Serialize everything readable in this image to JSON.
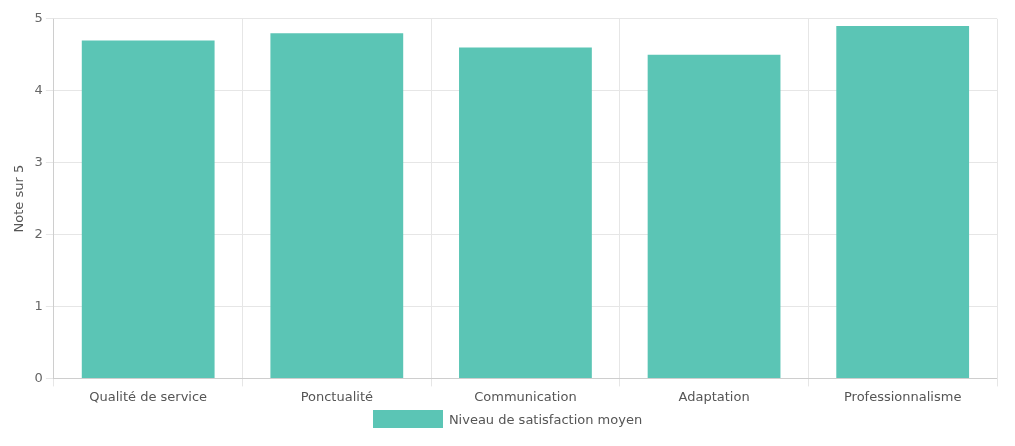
{
  "chart_data": {
    "type": "bar",
    "ylabel": "Note sur 5",
    "categories": [
      "Qualité de service",
      "Ponctualité",
      "Communication",
      "Adaptation",
      "Professionnalisme"
    ],
    "series": [
      {
        "name": "Niveau de satisfaction moyen",
        "color": "#5bc5b5",
        "values": [
          4.7,
          4.8,
          4.6,
          4.5,
          4.9
        ]
      }
    ],
    "ylim": [
      0,
      5
    ],
    "yticks": [
      0,
      1,
      2,
      3,
      4,
      5
    ],
    "grid": true,
    "legend": "bottom"
  }
}
